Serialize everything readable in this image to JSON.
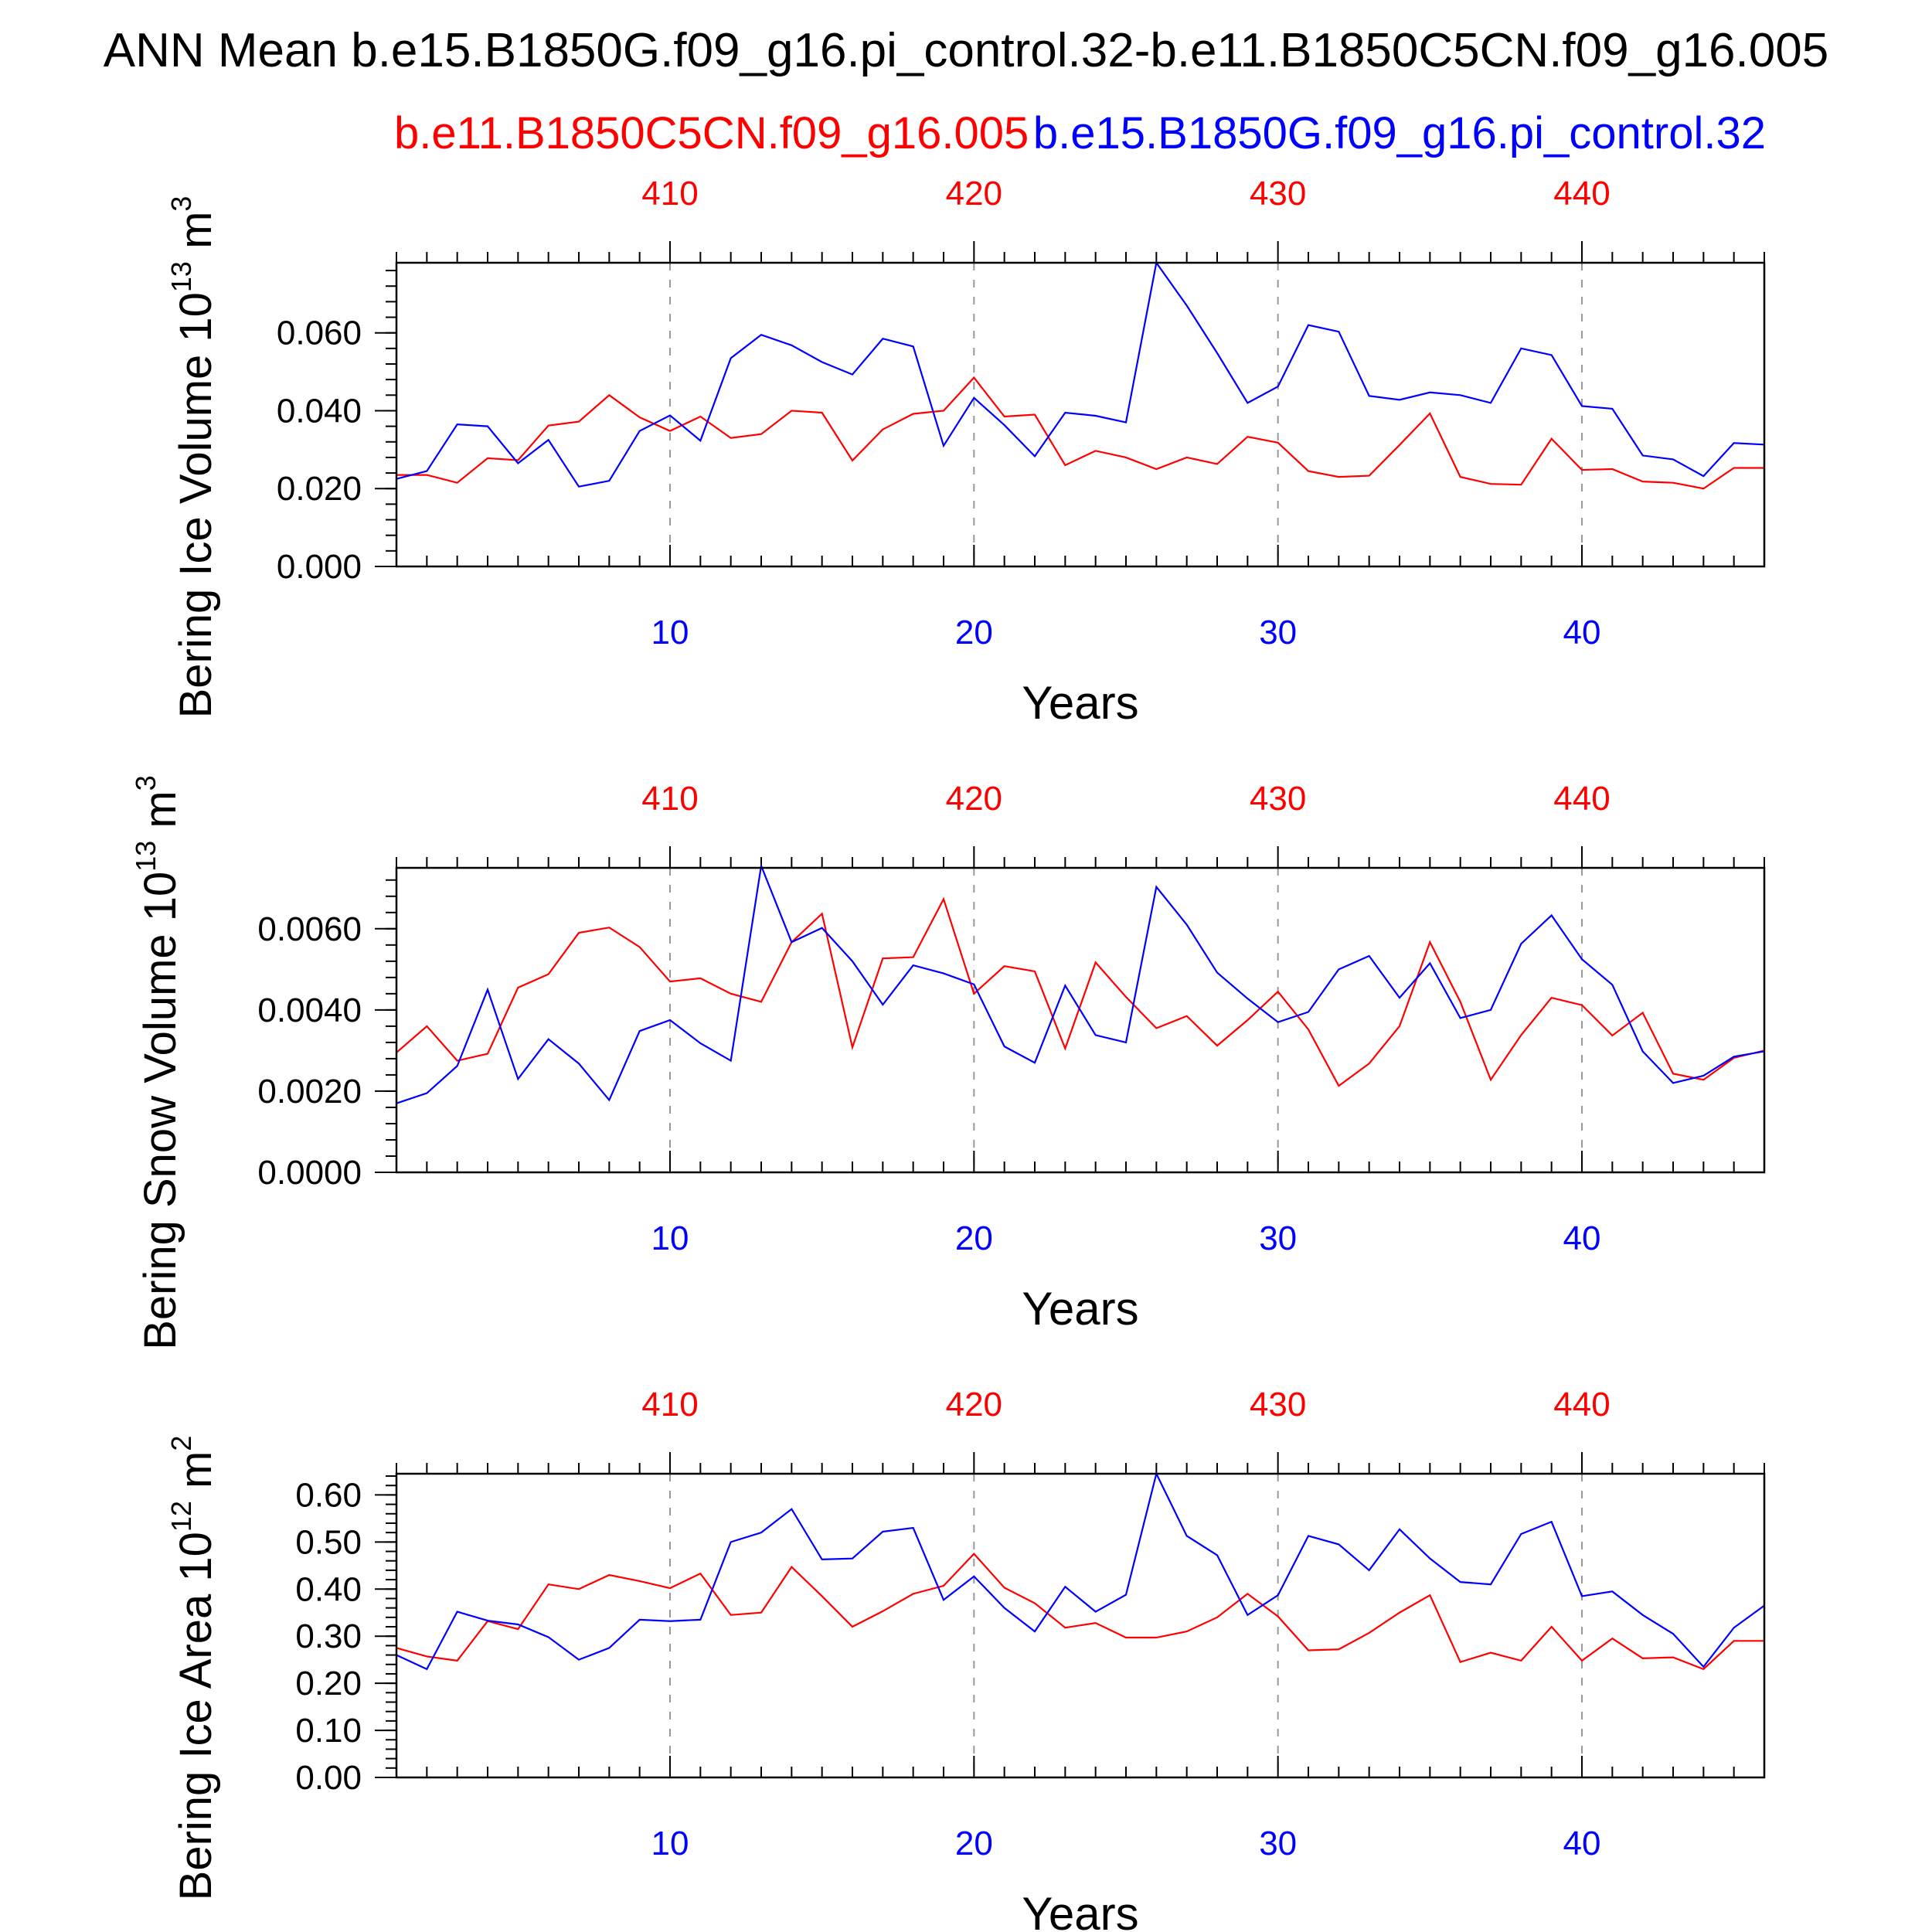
{
  "title": "ANN Mean b.e15.B1850G.f09_g16.pi_control.32-b.e11.B1850C5CN.f09_g16.005",
  "legend": {
    "red_label": "b.e11.B1850C5CN.f09_g16.005",
    "blue_label": "b.e15.B1850G.f09_g16.pi_control.32"
  },
  "colors": {
    "red": "#ff0000",
    "blue": "#0000ff",
    "axis": "#000000",
    "grid": "#999999"
  },
  "chart_data": [
    {
      "type": "line",
      "ylabel": "Bering Ice Volume 10",
      "yunit_exp": "13",
      "yunit_suffix": " m",
      "yunit_pow": "3",
      "xlabel": "Years",
      "xlim": [
        1,
        46
      ],
      "ylim": [
        0,
        0.078
      ],
      "yticks": [
        0.0,
        0.02,
        0.04,
        0.06
      ],
      "ytick_labels": [
        "0.000",
        "0.020",
        "0.040",
        "0.060"
      ],
      "yminor": 0.004,
      "xticks_bottom": [
        10,
        20,
        30,
        40
      ],
      "xtick_labels_bottom": [
        "10",
        "20",
        "30",
        "40"
      ],
      "xtick_labels_top": [
        "410",
        "420",
        "430",
        "440"
      ],
      "grid_x": [
        10,
        20,
        30,
        40
      ],
      "series": [
        {
          "name": "b.e11.B1850C5CN.f09_g16.005",
          "color": "#ff0000",
          "values": [
            0.0235,
            0.0235,
            0.0215,
            0.0278,
            0.0273,
            0.0362,
            0.0372,
            0.044,
            0.0383,
            0.0348,
            0.0385,
            0.033,
            0.034,
            0.04,
            0.0395,
            0.0272,
            0.0352,
            0.0392,
            0.04,
            0.0485,
            0.0385,
            0.039,
            0.026,
            0.0297,
            0.028,
            0.025,
            0.028,
            0.0263,
            0.0333,
            0.0318,
            0.0245,
            0.023,
            0.0233,
            0.0312,
            0.0393,
            0.023,
            0.0212,
            0.021,
            0.0328,
            0.0248,
            0.025,
            0.0218,
            0.0215,
            0.02,
            0.0253,
            0.0253
          ]
        },
        {
          "name": "b.e15.B1850G.f09_g16.pi_control.32",
          "color": "#0000ff",
          "values": [
            0.0225,
            0.0245,
            0.0365,
            0.036,
            0.0265,
            0.0325,
            0.0205,
            0.022,
            0.0348,
            0.0388,
            0.0323,
            0.0535,
            0.0595,
            0.0568,
            0.0525,
            0.0493,
            0.0585,
            0.0565,
            0.031,
            0.0433,
            0.0363,
            0.0283,
            0.0395,
            0.0387,
            0.037,
            0.078,
            0.067,
            0.0548,
            0.042,
            0.0462,
            0.062,
            0.0603,
            0.0438,
            0.0428,
            0.0447,
            0.044,
            0.042,
            0.056,
            0.0543,
            0.0412,
            0.0405,
            0.0285,
            0.0275,
            0.0232,
            0.0317,
            0.0313
          ]
        }
      ]
    },
    {
      "type": "line",
      "ylabel": "Bering Snow Volume 10",
      "yunit_exp": "13",
      "yunit_suffix": " m",
      "yunit_pow": "3",
      "xlabel": "Years",
      "xlim": [
        1,
        46
      ],
      "ylim": [
        0,
        0.0075
      ],
      "yticks": [
        0.0,
        0.002,
        0.004,
        0.006
      ],
      "ytick_labels": [
        "0.0000",
        "0.0020",
        "0.0040",
        "0.0060"
      ],
      "yminor": 0.0004,
      "xticks_bottom": [
        10,
        20,
        30,
        40
      ],
      "xtick_labels_bottom": [
        "10",
        "20",
        "30",
        "40"
      ],
      "xtick_labels_top": [
        "410",
        "420",
        "430",
        "440"
      ],
      "grid_x": [
        10,
        20,
        30,
        40
      ],
      "series": [
        {
          "name": "b.e11.B1850C5CN.f09_g16.005",
          "color": "#ff0000",
          "values": [
            0.00295,
            0.0036,
            0.00275,
            0.00292,
            0.00455,
            0.00488,
            0.0059,
            0.00603,
            0.00555,
            0.0047,
            0.00478,
            0.0044,
            0.0042,
            0.00567,
            0.00637,
            0.00308,
            0.00527,
            0.0053,
            0.00673,
            0.0044,
            0.00508,
            0.00495,
            0.00305,
            0.00517,
            0.00432,
            0.00355,
            0.00385,
            0.00312,
            0.00375,
            0.00445,
            0.00352,
            0.00213,
            0.00268,
            0.0036,
            0.00567,
            0.0042,
            0.00228,
            0.00338,
            0.0043,
            0.00412,
            0.00337,
            0.00393,
            0.00243,
            0.00228,
            0.00282,
            0.003
          ]
        },
        {
          "name": "b.e15.B1850G.f09_g16.pi_control.32",
          "color": "#0000ff",
          "values": [
            0.0017,
            0.00195,
            0.00262,
            0.0045,
            0.0023,
            0.00328,
            0.00268,
            0.00178,
            0.00348,
            0.00375,
            0.00318,
            0.00275,
            0.00755,
            0.00567,
            0.00602,
            0.0052,
            0.00413,
            0.0051,
            0.0049,
            0.00463,
            0.0031,
            0.0027,
            0.0046,
            0.00338,
            0.0032,
            0.00703,
            0.0061,
            0.00492,
            0.00428,
            0.0037,
            0.00395,
            0.005,
            0.00533,
            0.0043,
            0.00515,
            0.0038,
            0.004,
            0.00563,
            0.00633,
            0.00525,
            0.00462,
            0.00298,
            0.0022,
            0.00238,
            0.00285,
            0.00298
          ]
        }
      ]
    },
    {
      "type": "line",
      "ylabel": "Bering Ice Area 10",
      "yunit_exp": "12",
      "yunit_suffix": " m",
      "yunit_pow": "2",
      "xlabel": "Years",
      "xlim": [
        1,
        46
      ],
      "ylim": [
        0,
        0.645
      ],
      "yticks": [
        0.0,
        0.1,
        0.2,
        0.3,
        0.4,
        0.5,
        0.6
      ],
      "ytick_labels": [
        "0.00",
        "0.10",
        "0.20",
        "0.30",
        "0.40",
        "0.50",
        "0.60"
      ],
      "yminor": 0.02,
      "xticks_bottom": [
        10,
        20,
        30,
        40
      ],
      "xtick_labels_bottom": [
        "10",
        "20",
        "30",
        "40"
      ],
      "xtick_labels_top": [
        "410",
        "420",
        "430",
        "440"
      ],
      "grid_x": [
        10,
        20,
        30,
        40
      ],
      "series": [
        {
          "name": "b.e11.B1850C5CN.f09_g16.005",
          "color": "#ff0000",
          "values": [
            0.275,
            0.257,
            0.248,
            0.332,
            0.315,
            0.41,
            0.4,
            0.43,
            0.417,
            0.402,
            0.433,
            0.345,
            0.35,
            0.447,
            0.385,
            0.32,
            0.353,
            0.39,
            0.407,
            0.475,
            0.403,
            0.37,
            0.318,
            0.328,
            0.297,
            0.297,
            0.31,
            0.34,
            0.39,
            0.342,
            0.27,
            0.272,
            0.307,
            0.35,
            0.387,
            0.245,
            0.265,
            0.248,
            0.32,
            0.248,
            0.295,
            0.253,
            0.255,
            0.23,
            0.29,
            0.29
          ]
        },
        {
          "name": "b.e15.B1850G.f09_g16.pi_control.32",
          "color": "#0000ff",
          "values": [
            0.26,
            0.23,
            0.352,
            0.333,
            0.325,
            0.298,
            0.25,
            0.275,
            0.335,
            0.332,
            0.335,
            0.5,
            0.52,
            0.57,
            0.463,
            0.465,
            0.522,
            0.53,
            0.377,
            0.427,
            0.36,
            0.31,
            0.405,
            0.352,
            0.388,
            0.645,
            0.513,
            0.472,
            0.345,
            0.387,
            0.513,
            0.495,
            0.44,
            0.527,
            0.465,
            0.415,
            0.41,
            0.517,
            0.543,
            0.385,
            0.395,
            0.345,
            0.305,
            0.235,
            0.318,
            0.365
          ]
        }
      ]
    }
  ]
}
